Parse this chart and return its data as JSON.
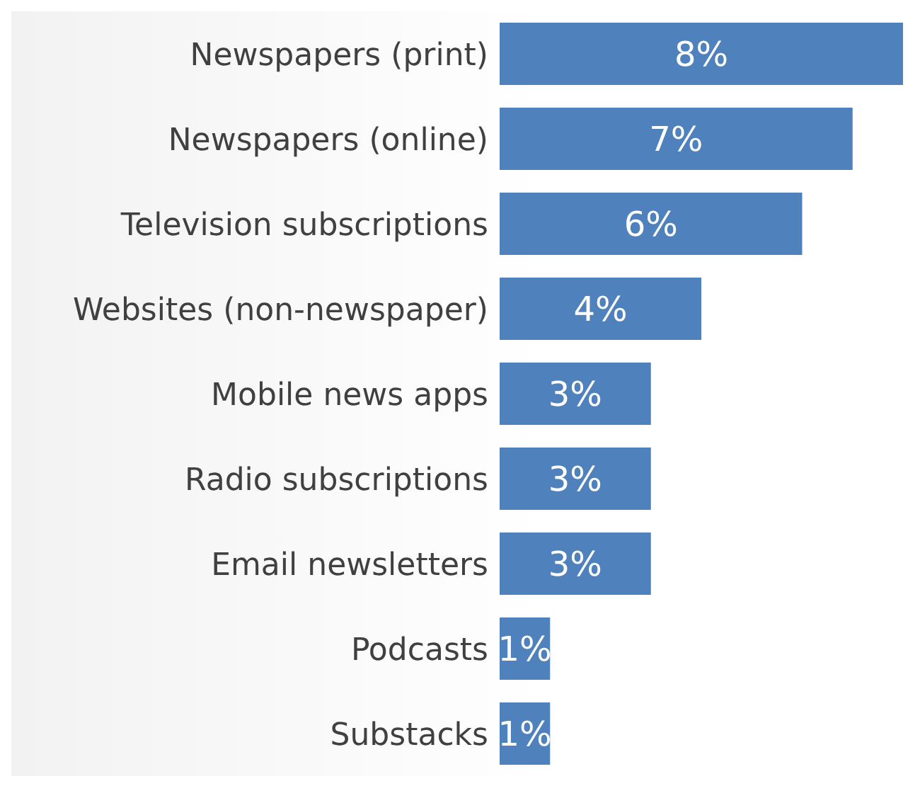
{
  "chart_data": {
    "type": "bar",
    "orientation": "horizontal",
    "categories": [
      "Newspapers (print)",
      "Newspapers (online)",
      "Television subscriptions",
      "Websites (non-newspaper)",
      "Mobile news apps",
      "Radio subscriptions",
      "Email newsletters",
      "Podcasts",
      "Substacks"
    ],
    "values": [
      8,
      7,
      6,
      4,
      3,
      3,
      3,
      1,
      1
    ],
    "value_labels": [
      "8%",
      "7%",
      "6%",
      "4%",
      "3%",
      "3%",
      "3%",
      "1%",
      "1%"
    ],
    "color": "#4f81bd",
    "grid": false,
    "legend": false
  }
}
